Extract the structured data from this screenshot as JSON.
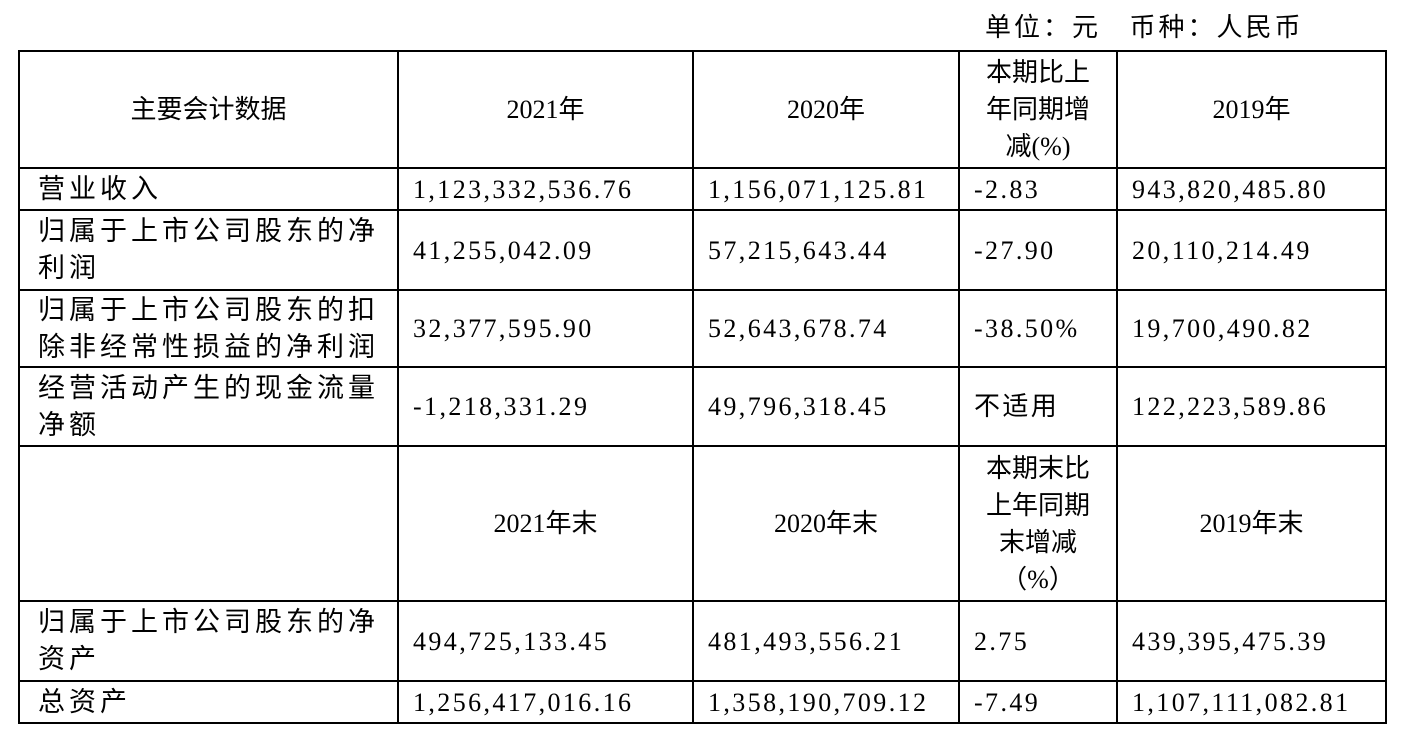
{
  "unit": "单位：元   币种：人民币",
  "table": {
    "rows": [
      {
        "label": "主要会计数据",
        "values": [
          "2021年",
          "2020年",
          "本期比上年同期增减(%)",
          "2019年"
        ],
        "header": true
      },
      {
        "label": "营业收入",
        "values": [
          "1,123,332,536.76",
          "1,156,071,125.81",
          "-2.83",
          "943,820,485.80"
        ]
      },
      {
        "label": "归属于上市公司股东的净利润",
        "values": [
          "41,255,042.09",
          "57,215,643.44",
          "-27.90",
          "20,110,214.49"
        ]
      },
      {
        "label": "归属于上市公司股东的扣除非经常性损益的净利润",
        "values": [
          "32,377,595.90",
          "52,643,678.74",
          "-38.50%",
          "19,700,490.82"
        ]
      },
      {
        "label": "经营活动产生的现金流量净额",
        "values": [
          "-1,218,331.29",
          "49,796,318.45",
          "不适用",
          "122,223,589.86"
        ]
      },
      {
        "values": [
          "2021年末",
          "2020年末",
          "本期末比上年同期末增减（%）",
          "2019年末"
        ],
        "header": true
      },
      {
        "label": "归属于上市公司股东的净资产",
        "values": [
          "494,725,133.45",
          "481,493,556.21",
          "2.75",
          "439,395,475.39"
        ]
      },
      {
        "label": "总资产",
        "values": [
          "1,256,417,016.16",
          "1,358,190,709.12",
          "-7.49",
          "1,107,111,082.81"
        ]
      }
    ]
  }
}
